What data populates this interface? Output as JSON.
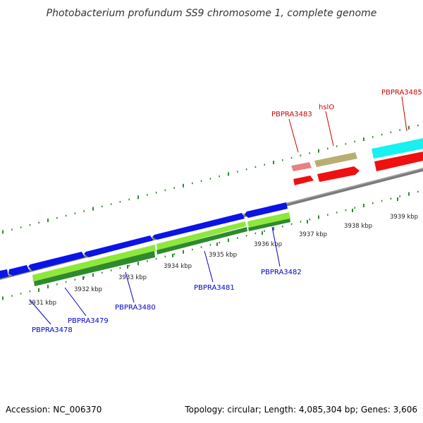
{
  "title": "Photobacterium profundum SS9 chromosome 1, complete genome",
  "footer": {
    "accession": "Accession: NC_006370",
    "summary": "Topology: circular; Length: 4,085,304 bp; Genes: 3,606"
  },
  "colors": {
    "backbone": "#7a7a7a",
    "tick": "#2e8b2e",
    "forward_strand_label": "#cc0000",
    "reverse_strand_label": "#0000cc",
    "blue_gene": "#0a14e6",
    "green_gene": "#8ee83c",
    "dark_green_gene": "#2d8a2d",
    "red_gene": "#f01010",
    "pink_gene": "#e88080",
    "khaki_gene": "#b5b070",
    "cyan_gene": "#19f0f0"
  },
  "scale_labels": [
    "3931 kbp",
    "3932 kbp",
    "3933 kbp",
    "3934 kbp",
    "3935 kbp",
    "3936 kbp",
    "3937 kbp",
    "3938 kbp",
    "3939 kbp"
  ],
  "gene_labels": {
    "PBPRA3478": "PBPRA3478",
    "PBPRA3479": "PBPRA3479",
    "PBPRA3480": "PBPRA3480",
    "PBPRA3481": "PBPRA3481",
    "PBPRA3482": "PBPRA3482",
    "PBPRA3483": "PBPRA3483",
    "hslO": "hslO",
    "PBPRA3485": "PBPRA3485"
  }
}
